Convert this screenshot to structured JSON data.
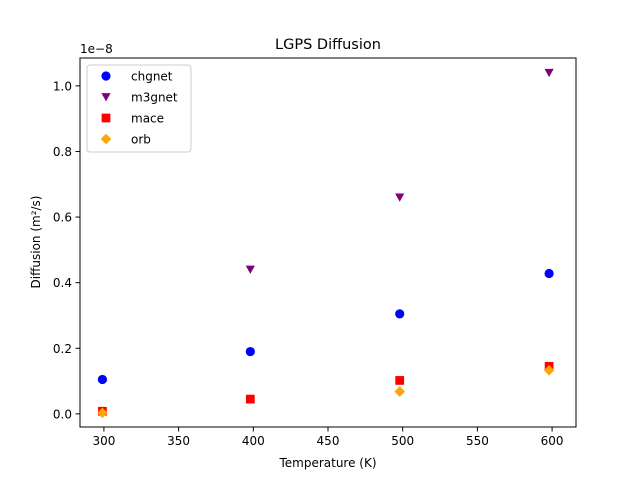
{
  "chart_data": {
    "type": "scatter",
    "title": "LGPS Diffusion",
    "xlabel": "Temperature (K)",
    "ylabel": "Diffusion (m²/s)",
    "offset_label": "1e−8",
    "xlim": [
      284,
      616
    ],
    "ylim": [
      -0.04,
      1.085
    ],
    "x_ticks": [
      300,
      350,
      400,
      450,
      500,
      550,
      600
    ],
    "x_tick_labels": [
      "300",
      "350",
      "400",
      "450",
      "500",
      "550",
      "600"
    ],
    "y_ticks": [
      0.0,
      0.2,
      0.4,
      0.6,
      0.8,
      1.0
    ],
    "y_tick_labels": [
      "0.0",
      "0.2",
      "0.4",
      "0.6",
      "0.8",
      "1.0"
    ],
    "grid": false,
    "legend_position": "top-left",
    "series": [
      {
        "name": "chgnet",
        "marker": "circle",
        "color": "#0000ff",
        "x": [
          299,
          398,
          498,
          598
        ],
        "y": [
          0.105,
          0.19,
          0.305,
          0.428
        ]
      },
      {
        "name": "m3gnet",
        "marker": "triangle-down",
        "color": "#800080",
        "x": [
          398,
          498,
          598
        ],
        "y": [
          0.44,
          0.66,
          1.04
        ]
      },
      {
        "name": "mace",
        "marker": "square",
        "color": "#ff0000",
        "x": [
          299,
          398,
          498,
          598
        ],
        "y": [
          0.008,
          0.045,
          0.102,
          0.145
        ]
      },
      {
        "name": "orb",
        "marker": "diamond",
        "color": "#ffa500",
        "x": [
          299,
          498,
          598
        ],
        "y": [
          0.003,
          0.068,
          0.133
        ]
      }
    ]
  }
}
